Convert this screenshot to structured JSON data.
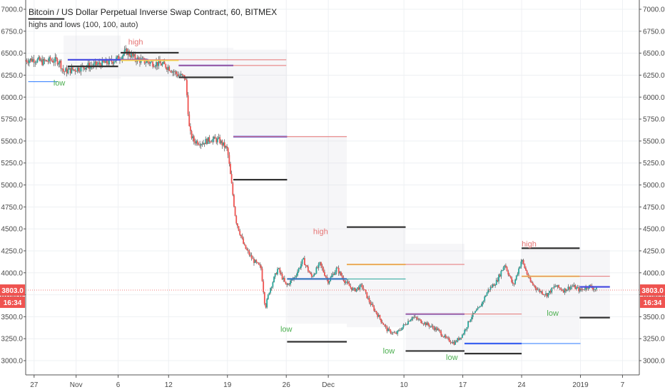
{
  "chart_data": {
    "type": "candlestick",
    "title": "Bitcoin / US Dollar Perpetual Inverse Swap Contract, 60, BITMEX",
    "indicator_label": "highs and lows (100, 100, auto)",
    "ylim": [
      2950,
      7000
    ],
    "y_ticks": [
      3000,
      3250,
      3500,
      3750,
      4000,
      4250,
      4500,
      4750,
      5000,
      5250,
      5500,
      5750,
      6000,
      6250,
      6500,
      6750,
      7000
    ],
    "xlim": [
      -1,
      72
    ],
    "x_ticks": [
      {
        "d": 0,
        "label": "27"
      },
      {
        "d": 5,
        "label": "Nov"
      },
      {
        "d": 10,
        "label": "6"
      },
      {
        "d": 16,
        "label": "12"
      },
      {
        "d": 23,
        "label": "19"
      },
      {
        "d": 30,
        "label": "26"
      },
      {
        "d": 35,
        "label": "Dec"
      },
      {
        "d": 44,
        "label": "10"
      },
      {
        "d": 51,
        "label": "17"
      },
      {
        "d": 58,
        "label": "24"
      },
      {
        "d": 65,
        "label": "2019"
      },
      {
        "d": 70,
        "label": "7"
      }
    ],
    "grid": true,
    "price_path": [
      [
        -1,
        6420
      ],
      [
        0,
        6430
      ],
      [
        1,
        6400
      ],
      [
        2,
        6420
      ],
      [
        3,
        6410
      ],
      [
        3.5,
        6290
      ],
      [
        4,
        6300
      ],
      [
        5,
        6320
      ],
      [
        6,
        6350
      ],
      [
        7,
        6360
      ],
      [
        8,
        6380
      ],
      [
        9,
        6400
      ],
      [
        10,
        6440
      ],
      [
        11,
        6520
      ],
      [
        12,
        6440
      ],
      [
        13,
        6410
      ],
      [
        14,
        6390
      ],
      [
        15,
        6380
      ],
      [
        16,
        6340
      ],
      [
        17,
        6260
      ],
      [
        18,
        6220
      ],
      [
        18.2,
        6000
      ],
      [
        18.5,
        5600
      ],
      [
        19,
        5500
      ],
      [
        20,
        5480
      ],
      [
        21,
        5520
      ],
      [
        22,
        5510
      ],
      [
        23,
        5400
      ],
      [
        23.5,
        5000
      ],
      [
        24,
        4600
      ],
      [
        25,
        4300
      ],
      [
        26,
        4150
      ],
      [
        27,
        4050
      ],
      [
        27.5,
        3600
      ],
      [
        28,
        3800
      ],
      [
        29,
        4050
      ],
      [
        30,
        3850
      ],
      [
        31,
        3950
      ],
      [
        32,
        4150
      ],
      [
        33,
        3950
      ],
      [
        34,
        4100
      ],
      [
        35,
        3900
      ],
      [
        36,
        4050
      ],
      [
        37,
        3900
      ],
      [
        38,
        3800
      ],
      [
        39,
        3850
      ],
      [
        40,
        3650
      ],
      [
        41,
        3500
      ],
      [
        42,
        3350
      ],
      [
        43,
        3300
      ],
      [
        44,
        3400
      ],
      [
        45,
        3500
      ],
      [
        46,
        3450
      ],
      [
        47,
        3400
      ],
      [
        48,
        3350
      ],
      [
        49,
        3250
      ],
      [
        50,
        3200
      ],
      [
        51,
        3300
      ],
      [
        52,
        3500
      ],
      [
        53,
        3600
      ],
      [
        54,
        3800
      ],
      [
        55,
        3900
      ],
      [
        56,
        4100
      ],
      [
        57,
        3850
      ],
      [
        58,
        4150
      ],
      [
        59,
        3900
      ],
      [
        60,
        3800
      ],
      [
        61,
        3750
      ],
      [
        62,
        3850
      ],
      [
        63,
        3800
      ],
      [
        64,
        3850
      ],
      [
        65,
        3800
      ],
      [
        66,
        3850
      ],
      [
        67,
        3803
      ]
    ],
    "levels": [
      {
        "x0": -0.7,
        "x1": 3.6,
        "y": 6890,
        "color": "#333333",
        "w": 2.2
      },
      {
        "x0": 4,
        "x1": 13.6,
        "y": 6425,
        "color": "#4a4de0",
        "w": 2.2
      },
      {
        "x0": 10.3,
        "x1": 17.2,
        "y": 6505,
        "color": "#333333",
        "w": 2.2
      },
      {
        "x0": 10.3,
        "x1": 17.2,
        "y": 6420,
        "color": "#f2e84c",
        "w": 2.2
      },
      {
        "x0": 10.3,
        "x1": 30,
        "y": 6425,
        "color": "#e57373",
        "w": 1
      },
      {
        "x0": 17.2,
        "x1": 23.7,
        "y": 6360,
        "color": "#4a4de0",
        "w": 2.2
      },
      {
        "x0": 17.2,
        "x1": 30,
        "y": 6360,
        "color": "#e57373",
        "w": 1
      },
      {
        "x0": 4,
        "x1": 10,
        "y": 6350,
        "color": "#333333",
        "w": 2.2
      },
      {
        "x0": 17.2,
        "x1": 23.7,
        "y": 6225,
        "color": "#333333",
        "w": 2.2
      },
      {
        "x0": -0.7,
        "x1": 2.8,
        "y": 6175,
        "color": "#2979ff",
        "w": 1
      },
      {
        "x0": 23.7,
        "x1": 30.1,
        "y": 5550,
        "color": "#4a4de0",
        "w": 2.2
      },
      {
        "x0": 23.7,
        "x1": 37.2,
        "y": 5550,
        "color": "#e57373",
        "w": 1
      },
      {
        "x0": 23.7,
        "x1": 30.1,
        "y": 5060,
        "color": "#333333",
        "w": 2.2
      },
      {
        "x0": 37.2,
        "x1": 44.2,
        "y": 4520,
        "color": "#333333",
        "w": 2.2
      },
      {
        "x0": 37.2,
        "x1": 44.2,
        "y": 4095,
        "color": "#f2e84c",
        "w": 2.2
      },
      {
        "x0": 37.2,
        "x1": 51.2,
        "y": 4095,
        "color": "#e57373",
        "w": 1
      },
      {
        "x0": 30.1,
        "x1": 37.2,
        "y": 3930,
        "color": "#4a4de0",
        "w": 2.2
      },
      {
        "x0": 30.1,
        "x1": 44.2,
        "y": 3930,
        "color": "#26a69a",
        "w": 1
      },
      {
        "x0": 44.2,
        "x1": 51.2,
        "y": 3530,
        "color": "#4a4de0",
        "w": 2.2
      },
      {
        "x0": 44.2,
        "x1": 58,
        "y": 3530,
        "color": "#e57373",
        "w": 1
      },
      {
        "x0": 30.1,
        "x1": 37.2,
        "y": 3215,
        "color": "#333333",
        "w": 2.2
      },
      {
        "x0": 51.2,
        "x1": 58,
        "y": 3195,
        "color": "#4a4de0",
        "w": 2.2
      },
      {
        "x0": 51.2,
        "x1": 65,
        "y": 3195,
        "color": "#2979ff",
        "w": 1
      },
      {
        "x0": 44.2,
        "x1": 51.2,
        "y": 3110,
        "color": "#333333",
        "w": 2.2
      },
      {
        "x0": 51.2,
        "x1": 58,
        "y": 3080,
        "color": "#333333",
        "w": 2.2
      },
      {
        "x0": 58,
        "x1": 64.9,
        "y": 4280,
        "color": "#333333",
        "w": 2.2
      },
      {
        "x0": 58,
        "x1": 64.9,
        "y": 3960,
        "color": "#f2e84c",
        "w": 2.2
      },
      {
        "x0": 58,
        "x1": 68.5,
        "y": 3960,
        "color": "#e57373",
        "w": 1
      },
      {
        "x0": 64.9,
        "x1": 68.5,
        "y": 3840,
        "color": "#4a4de0",
        "w": 2.2
      },
      {
        "x0": 64.9,
        "x1": 68.5,
        "y": 3490,
        "color": "#333333",
        "w": 2.2
      }
    ],
    "shaded_boxes": [
      [
        3.5,
        6700,
        10.3,
        6210
      ],
      [
        10.3,
        6560,
        17.2,
        6230
      ],
      [
        17.2,
        6560,
        23.7,
        6210
      ],
      [
        23.7,
        6540,
        30.1,
        5530
      ],
      [
        30.1,
        5560,
        37.2,
        3420
      ],
      [
        37.2,
        4520,
        44.2,
        3380
      ],
      [
        44.2,
        4330,
        51.2,
        3100
      ],
      [
        51.2,
        4150,
        58,
        3090
      ],
      [
        58,
        4280,
        64.9,
        3250
      ],
      [
        64.9,
        4260,
        68.5,
        3480
      ]
    ],
    "annotations": [
      {
        "text": "high",
        "x": 11.2,
        "y": 6600,
        "color": "#e57373"
      },
      {
        "text": "low",
        "x": 2.3,
        "y": 6130,
        "color": "#4caf50"
      },
      {
        "text": "high",
        "x": 33.2,
        "y": 4440,
        "color": "#e57373"
      },
      {
        "text": "low",
        "x": 29.3,
        "y": 3330,
        "color": "#4caf50"
      },
      {
        "text": "low",
        "x": 41.5,
        "y": 3080,
        "color": "#4caf50"
      },
      {
        "text": "low",
        "x": 49.0,
        "y": 3010,
        "color": "#4caf50"
      },
      {
        "text": "high",
        "x": 58.0,
        "y": 4300,
        "color": "#e57373"
      },
      {
        "text": "low",
        "x": 61.0,
        "y": 3510,
        "color": "#4caf50"
      }
    ],
    "current_price": "3803.0",
    "countdown": "16:34",
    "last_price_value": 3803,
    "up_color": "#26a69a",
    "down_color": "#ef5350",
    "badge_color": "#ef5350"
  }
}
